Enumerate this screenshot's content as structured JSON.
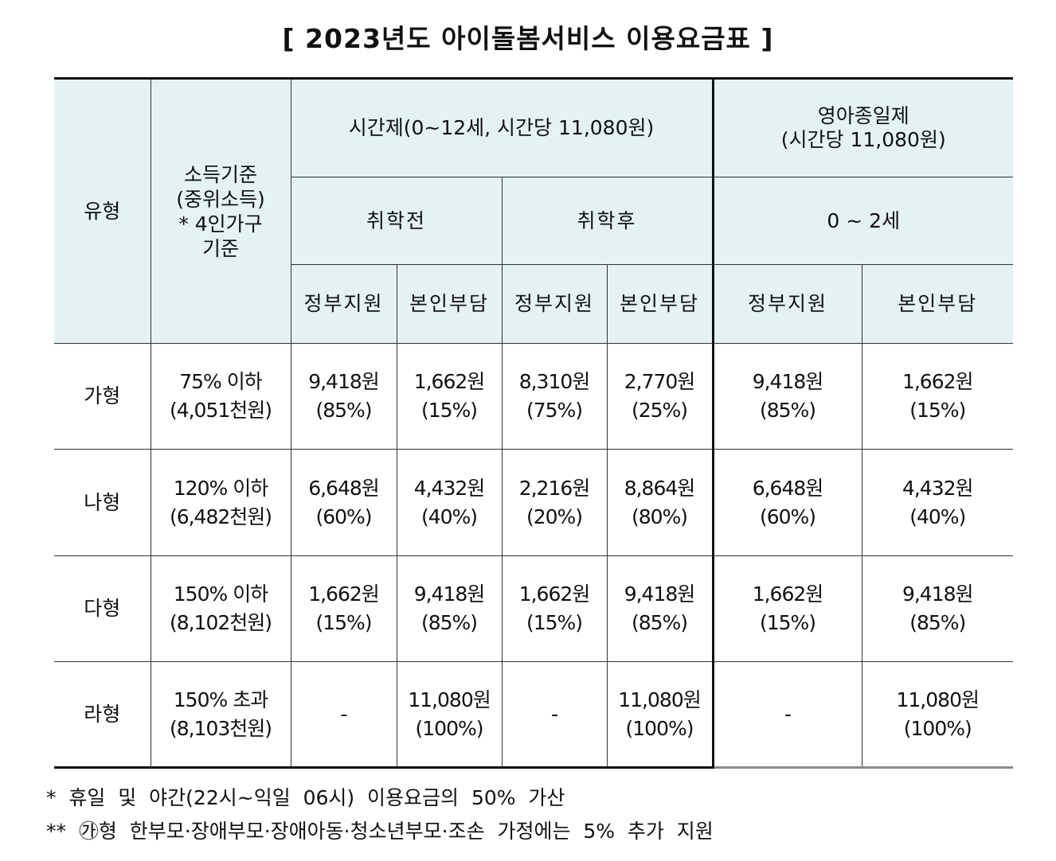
{
  "title": "[ 2023년도 아이돌봄서비스 이용요금표 ]",
  "header": {
    "type": "유형",
    "income_lines": [
      "소득기준",
      "(중위소득)",
      "* 4인가구",
      "기준"
    ],
    "hourly": "시간제(0~12세, 시간당 11,080원)",
    "infant_lines": [
      "영아종일제",
      "(시간당 11,080원)"
    ],
    "preschool": "취학전",
    "school": "취학후",
    "infant_age": "0 ~ 2세",
    "gov": "정부지원",
    "self": "본인부담"
  },
  "rows": [
    {
      "type": "가형",
      "income1": "75% 이하",
      "income2": "(4,051천원)",
      "cells": [
        [
          "9,418원",
          "(85%)"
        ],
        [
          "1,662원",
          "(15%)"
        ],
        [
          "8,310원",
          "(75%)"
        ],
        [
          "2,770원",
          "(25%)"
        ],
        [
          "9,418원",
          "(85%)"
        ],
        [
          "1,662원",
          "(15%)"
        ]
      ]
    },
    {
      "type": "나형",
      "income1": "120% 이하",
      "income2": "(6,482천원)",
      "cells": [
        [
          "6,648원",
          "(60%)"
        ],
        [
          "4,432원",
          "(40%)"
        ],
        [
          "2,216원",
          "(20%)"
        ],
        [
          "8,864원",
          "(80%)"
        ],
        [
          "6,648원",
          "(60%)"
        ],
        [
          "4,432원",
          "(40%)"
        ]
      ]
    },
    {
      "type": "다형",
      "income1": "150% 이하",
      "income2": "(8,102천원)",
      "cells": [
        [
          "1,662원",
          "(15%)"
        ],
        [
          "9,418원",
          "(85%)"
        ],
        [
          "1,662원",
          "(15%)"
        ],
        [
          "9,418원",
          "(85%)"
        ],
        [
          "1,662원",
          "(15%)"
        ],
        [
          "9,418원",
          "(85%)"
        ]
      ]
    },
    {
      "type": "라형",
      "income1": "150% 초과",
      "income2": "(8,103천원)",
      "cells": [
        [
          "-",
          ""
        ],
        [
          "11,080원",
          "(100%)"
        ],
        [
          "-",
          ""
        ],
        [
          "11,080원",
          "(100%)"
        ],
        [
          "-",
          ""
        ],
        [
          "11,080원",
          "(100%)"
        ]
      ]
    }
  ],
  "notes": [
    "*  휴일  및  야간(22시~익일  06시)  이용요금의  50%  가산",
    "**  ㉮형  한부모·장애부모·장애아동·청소년부모·조손  가정에는  5%  추가  지원"
  ]
}
